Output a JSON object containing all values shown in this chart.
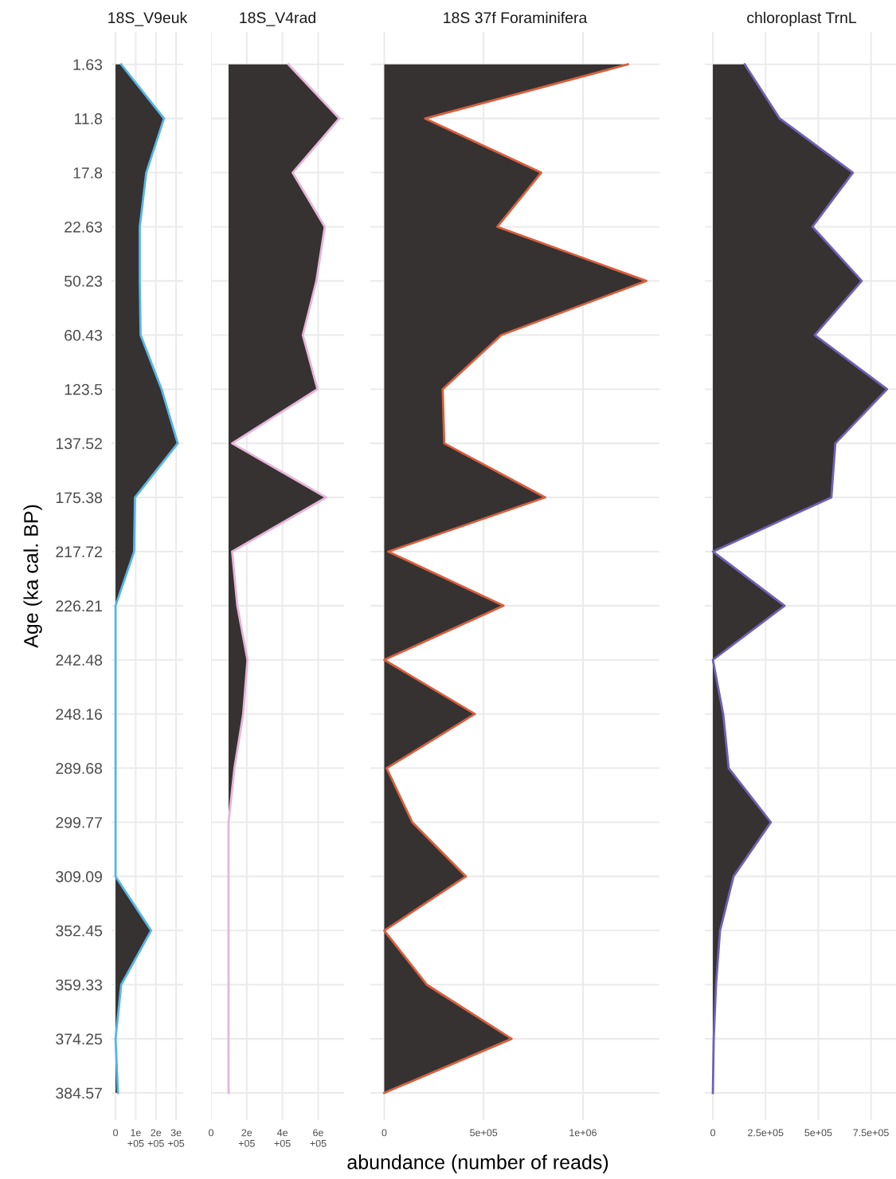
{
  "chart_data": [
    {
      "type": "area",
      "orientation": "horizontal",
      "title": "18S_V9euk",
      "ylabel": "Age (ka cal. BP)",
      "categories": [
        "1.63",
        "11.8",
        "17.8",
        "22.63",
        "50.23",
        "60.43",
        "123.5",
        "137.52",
        "175.38",
        "217.72",
        "226.21",
        "242.48",
        "248.16",
        "289.68",
        "299.77",
        "309.09",
        "352.45",
        "359.33",
        "374.25",
        "384.57"
      ],
      "series": [
        {
          "color": "#56b4e9",
          "values": [
            28000,
            240000,
            152000,
            120000,
            120000,
            124000,
            228000,
            308000,
            96000,
            92000,
            0,
            0,
            0,
            0,
            0,
            0,
            176000,
            28000,
            0,
            12000
          ]
        }
      ],
      "xlim": [
        -20000,
        335000
      ],
      "xticks": [
        0,
        {
          "value": 100000,
          "label": "1e+05"
        },
        {
          "value": 200000,
          "label": "2e+05"
        },
        {
          "value": 300000,
          "label": "3e+05"
        }
      ],
      "grid": true
    },
    {
      "type": "area",
      "orientation": "horizontal",
      "title": "18S_V4rad",
      "categories": [
        "1.63",
        "11.8",
        "17.8",
        "22.63",
        "50.23",
        "60.43",
        "123.5",
        "137.52",
        "175.38",
        "217.72",
        "226.21",
        "242.48",
        "248.16",
        "289.68",
        "299.77",
        "309.09",
        "352.45",
        "359.33",
        "374.25",
        "384.57"
      ],
      "series": [
        {
          "color": "#e8b4d8",
          "values": [
            433000,
            718000,
            457000,
            637000,
            590000,
            514000,
            596000,
            118000,
            645000,
            118000,
            147000,
            204000,
            180000,
            131000,
            98000,
            98000,
            98000,
            98000,
            98000,
            98000
          ]
        }
      ],
      "xlim": [
        0,
        745000
      ],
      "xticks": [
        0,
        {
          "value": 200000,
          "label": "2e+05"
        },
        {
          "value": 400000,
          "label": "4e+05"
        },
        {
          "value": 600000,
          "label": "6e+05"
        }
      ],
      "grid": true,
      "tick_labels": "x"
    },
    {
      "type": "area",
      "orientation": "horizontal",
      "title": "18S 37f Foraminifera",
      "xlabel": "abundance (number of reads)",
      "categories": [
        "1.63",
        "11.8",
        "17.8",
        "22.63",
        "50.23",
        "60.43",
        "123.5",
        "137.52",
        "175.38",
        "217.72",
        "226.21",
        "242.48",
        "248.16",
        "289.68",
        "299.77",
        "309.09",
        "352.45",
        "359.33",
        "374.25",
        "384.57"
      ],
      "series": [
        {
          "color": "#d95f3e",
          "values": [
            1226000,
            206000,
            790000,
            569000,
            1319000,
            589000,
            294000,
            302000,
            810000,
            20000,
            600000,
            0,
            456000,
            12000,
            141000,
            411000,
            0,
            214000,
            641000,
            0
          ]
        }
      ],
      "xlim": [
        -70000,
        1385000
      ],
      "xticks": [
        0,
        {
          "value": 500000,
          "label": "5e+05"
        },
        {
          "value": 1000000,
          "label": "1e+06"
        }
      ],
      "grid": true,
      "tick_labels": "x"
    },
    {
      "type": "area",
      "orientation": "horizontal",
      "title": "chloroplast TrnL",
      "categories": [
        "1.63",
        "11.8",
        "17.8",
        "22.63",
        "50.23",
        "60.43",
        "123.5",
        "137.52",
        "175.38",
        "217.72",
        "226.21",
        "242.48",
        "248.16",
        "289.68",
        "299.77",
        "309.09",
        "352.45",
        "359.33",
        "374.25",
        "384.57"
      ],
      "series": [
        {
          "color": "#7060b8",
          "values": [
            151000,
            317000,
            664000,
            472000,
            706000,
            483000,
            826000,
            581000,
            562000,
            0,
            340000,
            0,
            49000,
            75000,
            275000,
            98000,
            34000,
            15000,
            4000,
            0
          ]
        }
      ],
      "xlim": [
        -38000,
        880000
      ],
      "xticks": [
        0,
        {
          "value": 250000,
          "label": "2.5e+05"
        },
        {
          "value": 500000,
          "label": "5e+05"
        },
        {
          "value": 750000,
          "label": "7.5e+05"
        }
      ],
      "grid": true,
      "tick_labels": "x"
    }
  ]
}
